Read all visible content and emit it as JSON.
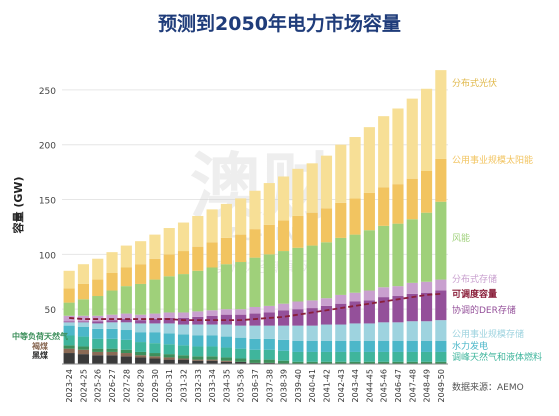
{
  "chart_data": {
    "type": "bar",
    "title": "预测到2050年电力市场容量",
    "ylabel": "容量 (GW)",
    "ylim": [
      0,
      290
    ],
    "yticks": [
      50,
      100,
      150,
      200,
      250
    ],
    "grid": true,
    "source": "数据来源：AEMO",
    "watermark": [
      "澳财",
      "AU-FIN",
      "澳洲财经新闻网"
    ],
    "categories": [
      "2023-24",
      "2024-25",
      "2025-26",
      "2026-27",
      "2027-28",
      "2028-29",
      "2029-30",
      "2030-31",
      "2031-32",
      "2032-33",
      "2033-34",
      "2034-35",
      "2035-36",
      "2036-37",
      "2037-38",
      "2038-39",
      "2039-40",
      "2040-41",
      "2041-42",
      "2042-43",
      "2043-44",
      "2044-45",
      "2045-46",
      "2046-47",
      "2047-48",
      "2048-49",
      "2049-50"
    ],
    "series": [
      {
        "name": "黑煤",
        "color": "#3a3a3a",
        "values": [
          10,
          9,
          8,
          8,
          7,
          6,
          5,
          4,
          4,
          3,
          3,
          2,
          2,
          1,
          1,
          0,
          0,
          0,
          0,
          0,
          0,
          0,
          0,
          0,
          0,
          0,
          0
        ]
      },
      {
        "name": "褐煤",
        "color": "#8a6a55",
        "values": [
          4,
          4,
          3,
          3,
          3,
          2,
          2,
          2,
          1,
          1,
          1,
          1,
          0,
          0,
          0,
          0,
          0,
          0,
          0,
          0,
          0,
          0,
          0,
          0,
          0,
          0,
          0
        ]
      },
      {
        "name": "中等负荷天然气",
        "color": "#3d8f5b",
        "values": [
          3,
          3,
          3,
          3,
          3,
          3,
          3,
          3,
          3,
          3,
          3,
          3,
          3,
          3,
          3,
          3,
          2,
          2,
          2,
          2,
          2,
          2,
          2,
          2,
          2,
          2,
          2
        ]
      },
      {
        "name": "调峰天然气和液体燃料",
        "color": "#3fb59c",
        "values": [
          9,
          9,
          9,
          9,
          9,
          9,
          9,
          9,
          9,
          9,
          9,
          9,
          9,
          9,
          9,
          9,
          9,
          9,
          9,
          9,
          9,
          9,
          9,
          9,
          9,
          9,
          9
        ]
      },
      {
        "name": "水力发电",
        "color": "#4cb7c9",
        "values": [
          9,
          9,
          9,
          9,
          9,
          9,
          10,
          10,
          10,
          10,
          10,
          10,
          10,
          10,
          10,
          10,
          10,
          10,
          10,
          10,
          10,
          10,
          10,
          10,
          10,
          10,
          10
        ]
      },
      {
        "name": "公用事业规模存储",
        "color": "#9ed3df",
        "values": [
          3,
          4,
          5,
          6,
          7,
          8,
          8,
          9,
          9,
          10,
          10,
          11,
          11,
          12,
          12,
          13,
          14,
          14,
          15,
          15,
          16,
          16,
          17,
          17,
          18,
          18,
          19
        ]
      },
      {
        "name": "协调的DER存储",
        "color": "#94509a",
        "values": [
          1,
          1,
          2,
          2,
          3,
          3,
          4,
          5,
          6,
          7,
          8,
          9,
          10,
          11,
          12,
          14,
          15,
          16,
          17,
          19,
          20,
          21,
          23,
          24,
          25,
          26,
          27
        ]
      },
      {
        "name": "分布式存储",
        "color": "#c9a0cf",
        "values": [
          5,
          5,
          5,
          5,
          5,
          5,
          5,
          5,
          5,
          5,
          5,
          5,
          5,
          6,
          6,
          6,
          7,
          7,
          7,
          8,
          8,
          9,
          9,
          9,
          10,
          10,
          10
        ]
      },
      {
        "name": "风能",
        "color": "#9fd07a",
        "values": [
          12,
          15,
          18,
          22,
          25,
          28,
          31,
          33,
          35,
          37,
          39,
          41,
          43,
          45,
          47,
          48,
          49,
          50,
          51,
          52,
          53,
          55,
          56,
          57,
          58,
          63,
          71
        ]
      },
      {
        "name": "公用事业规模太阳能",
        "color": "#f2c460",
        "values": [
          13,
          14,
          15,
          16,
          17,
          18,
          19,
          20,
          21,
          22,
          23,
          24,
          25,
          26,
          27,
          28,
          29,
          30,
          31,
          32,
          33,
          34,
          35,
          36,
          37,
          38,
          39
        ]
      },
      {
        "name": "分布式光伏",
        "color": "#f7df96",
        "values": [
          16,
          18,
          19,
          19,
          20,
          21,
          22,
          24,
          26,
          28,
          30,
          31,
          33,
          35,
          38,
          40,
          43,
          45,
          48,
          53,
          56,
          60,
          65,
          69,
          73,
          75,
          81
        ]
      }
    ],
    "line": {
      "name": "可调度容量",
      "color": "#8a1f3a",
      "values": [
        42,
        41,
        41,
        41,
        41,
        41,
        41,
        41,
        40,
        40,
        40,
        40,
        40,
        41,
        42,
        43,
        45,
        47,
        49,
        51,
        53,
        55,
        57,
        59,
        61,
        63,
        64
      ]
    }
  }
}
